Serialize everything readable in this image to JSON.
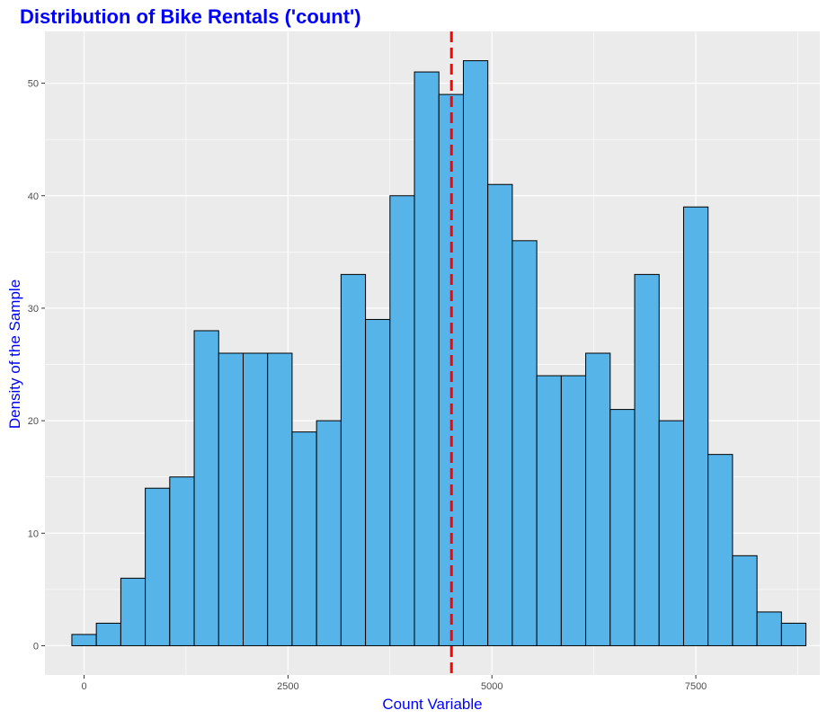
{
  "chart_data": {
    "type": "bar",
    "title": "Distribution of Bike Rentals ('count')",
    "xlabel": "Count Variable",
    "ylabel": "Density of the Sample",
    "xlim": [
      -480,
      9020
    ],
    "ylim": [
      -2.6,
      54.6
    ],
    "x_ticks": [
      0,
      2500,
      5000,
      7500
    ],
    "x_tick_labels": [
      "0",
      "2500",
      "5000",
      "7500"
    ],
    "y_ticks": [
      0,
      10,
      20,
      30,
      40,
      50
    ],
    "y_tick_labels": [
      "0",
      "10",
      "20",
      "30",
      "40",
      "50"
    ],
    "bin_width": 300,
    "bin_centers": [
      0,
      300,
      600,
      900,
      1200,
      1500,
      1800,
      2100,
      2400,
      2700,
      3000,
      3300,
      3600,
      3900,
      4200,
      4500,
      4800,
      5100,
      5400,
      5700,
      6000,
      6300,
      6600,
      6900,
      7200,
      7500,
      7800,
      8100,
      8400,
      8700
    ],
    "values": [
      1,
      2,
      6,
      14,
      15,
      28,
      26,
      26,
      26,
      19,
      20,
      33,
      29,
      40,
      51,
      49,
      52,
      41,
      36,
      24,
      24,
      26,
      21,
      33,
      20,
      39,
      17,
      8,
      3,
      2
    ],
    "mean_line": 4504,
    "grid": true,
    "legend": "none"
  },
  "colors": {
    "bar_fill": "#56B4E9",
    "bar_outline": "#000000",
    "panel_bg": "#EBEBEB",
    "grid_major": "#FFFFFF",
    "mean_line": "#FF0000",
    "title_text": "#0000FF",
    "axis_title_text": "#0000FF",
    "tick_text": "#4D4D4D"
  }
}
